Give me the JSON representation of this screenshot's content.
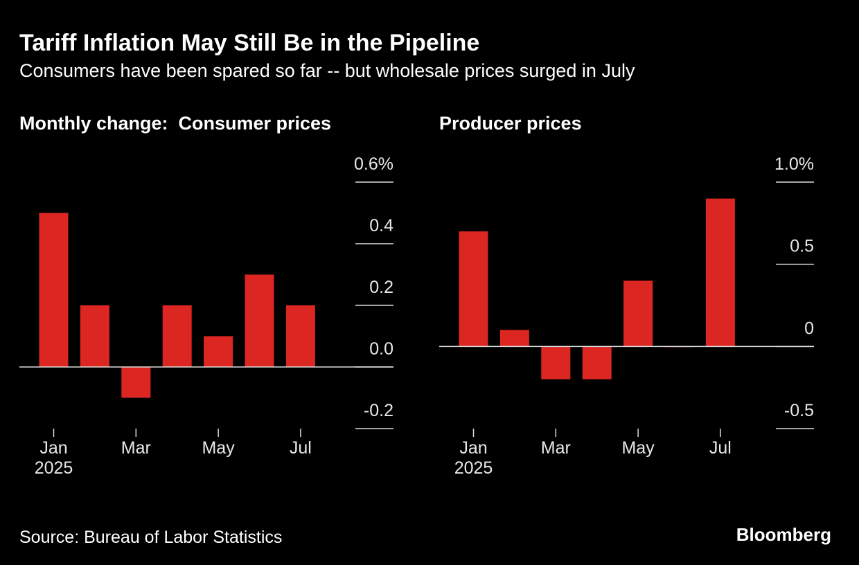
{
  "title": "Tariff Inflation May Still Be in the Pipeline",
  "subtitle": "Consumers have been spared so far -- but wholesale prices surged in July",
  "source": "Source: Bureau of Labor Statistics",
  "brand": "Bloomberg",
  "chart_data": [
    {
      "type": "bar",
      "title": "Monthly change:  Consumer prices",
      "categories": [
        "Jan 2025",
        null,
        "Mar",
        null,
        "May",
        null,
        "Jul"
      ],
      "values": [
        0.5,
        0.2,
        -0.1,
        0.2,
        0.1,
        0.3,
        0.2
      ],
      "color": "#dc2622",
      "ylim": [
        -0.2,
        0.6
      ],
      "yticks": [
        -0.2,
        {
          "value": 0,
          "label": "0.0"
        },
        0.2,
        0.4,
        {
          "value": 0.6,
          "label": "0.6%"
        }
      ]
    },
    {
      "type": "bar",
      "title": "Producer prices",
      "categories": [
        "Jan 2025",
        null,
        "Mar",
        null,
        "May",
        null,
        "Jul"
      ],
      "values": [
        0.7,
        0.1,
        -0.2,
        -0.2,
        0.4,
        0,
        0.9
      ],
      "color": "#dc2622",
      "ylim": [
        -0.5,
        1.0
      ],
      "yticks": [
        -0.5,
        0,
        0.5,
        {
          "value": 1.0,
          "label": "1.0%"
        }
      ]
    }
  ]
}
